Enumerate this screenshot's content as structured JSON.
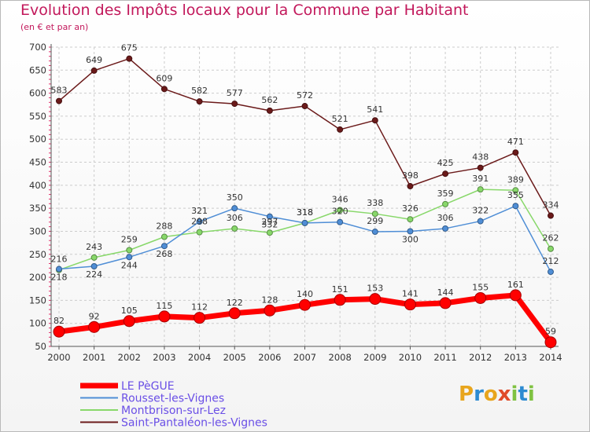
{
  "title": "Evolution des Impôts locaux pour la Commune par Habitant",
  "subtitle": "(en € et par an)",
  "logo": {
    "text": "Proxiti",
    "letters": [
      {
        "ch": "P",
        "color": "#e8a51c"
      },
      {
        "ch": "r",
        "color": "#2d8bd1"
      },
      {
        "ch": "o",
        "color": "#e8a51c"
      },
      {
        "ch": "x",
        "color": "#e04b2a"
      },
      {
        "ch": "i",
        "color": "#7fc241"
      },
      {
        "ch": "t",
        "color": "#2d8bd1"
      },
      {
        "ch": "i",
        "color": "#7fc241"
      }
    ]
  },
  "chart_data": {
    "type": "line",
    "x": [
      "2000",
      "2001",
      "2002",
      "2003",
      "2004",
      "2005",
      "2006",
      "2007",
      "2008",
      "2009",
      "2010",
      "2011",
      "2012",
      "2013",
      "2014"
    ],
    "ylim": [
      50,
      700
    ],
    "yticks": [
      50,
      100,
      150,
      200,
      250,
      300,
      350,
      400,
      450,
      500,
      550,
      600,
      650,
      700
    ],
    "grid": true,
    "legend_position": "bottom-left",
    "series": [
      {
        "name": "Saint-Pantaléon-les-Vignes",
        "color": "#6b1a1a",
        "values": [
          583,
          649,
          675,
          609,
          582,
          577,
          562,
          572,
          521,
          541,
          398,
          425,
          438,
          471,
          334
        ]
      },
      {
        "name": "Montbrison-sur-Lez",
        "color": "#88d86a",
        "values": [
          216,
          243,
          259,
          288,
          298,
          306,
          297,
          318,
          346,
          338,
          326,
          359,
          391,
          389,
          262
        ]
      },
      {
        "name": "Rousset-les-Vignes",
        "color": "#4f8ed6",
        "values": [
          218,
          224,
          244,
          268,
          321,
          350,
          332,
          318,
          320,
          299,
          300,
          306,
          322,
          355,
          212
        ]
      },
      {
        "name": "LE PèGUE",
        "color": "#ff0000",
        "values": [
          82,
          92,
          105,
          115,
          112,
          122,
          128,
          140,
          151,
          153,
          141,
          144,
          155,
          161,
          59
        ]
      }
    ],
    "legend_order": [
      "LE PèGUE",
      "Rousset-les-Vignes",
      "Montbrison-sur-Lez",
      "Saint-Pantaléon-les-Vignes"
    ]
  }
}
